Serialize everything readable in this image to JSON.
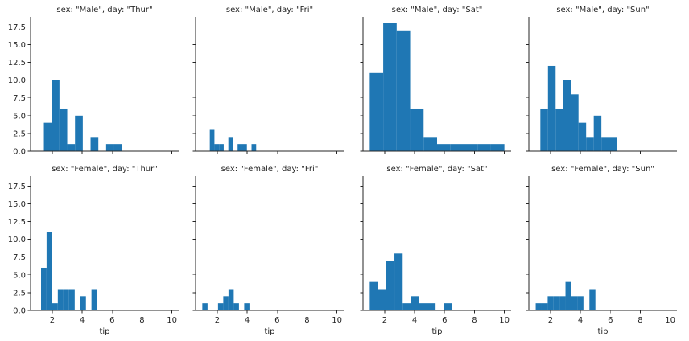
{
  "chart_data": {
    "type": "bar",
    "xlabel": "tip",
    "ylim": [
      0,
      18.9
    ],
    "xlim": [
      0.55,
      10.45
    ],
    "xticks": [
      2,
      4,
      6,
      8,
      10
    ],
    "xtick_labels": [
      "2",
      "4",
      "6",
      "8",
      "10"
    ],
    "yticks": [
      0,
      2.5,
      5,
      7.5,
      10,
      12.5,
      15,
      17.5
    ],
    "ytick_labels": [
      "0.0",
      "2.5",
      "5.0",
      "7.5",
      "10.0",
      "12.5",
      "15.0",
      "17.5"
    ],
    "bar_color": "#1f77b4",
    "panels": [
      {
        "title": "sex: \"Male\", day: \"Thur\"",
        "bins": [
          [
            1.44,
            1.96,
            4
          ],
          [
            1.96,
            2.48,
            10
          ],
          [
            2.48,
            3.0,
            6
          ],
          [
            3.0,
            3.52,
            1
          ],
          [
            3.52,
            4.04,
            5
          ],
          [
            4.04,
            4.56,
            0
          ],
          [
            4.56,
            5.08,
            2
          ],
          [
            5.08,
            5.6,
            0
          ],
          [
            5.6,
            6.12,
            1
          ],
          [
            6.12,
            6.64,
            1
          ]
        ]
      },
      {
        "title": "sex: \"Male\", day: \"Fri\"",
        "bins": [
          [
            1.5,
            1.81,
            3
          ],
          [
            1.81,
            2.12,
            1
          ],
          [
            2.12,
            2.43,
            1
          ],
          [
            2.43,
            2.74,
            0
          ],
          [
            2.74,
            3.05,
            2
          ],
          [
            3.05,
            3.36,
            0
          ],
          [
            3.36,
            3.67,
            1
          ],
          [
            3.67,
            3.98,
            1
          ],
          [
            3.98,
            4.29,
            0
          ],
          [
            4.29,
            4.6,
            1
          ]
        ]
      },
      {
        "title": "sex: \"Male\", day: \"Sat\"",
        "bins": [
          [
            1.0,
            1.9,
            11
          ],
          [
            1.9,
            2.8,
            18
          ],
          [
            2.8,
            3.7,
            17
          ],
          [
            3.7,
            4.6,
            6
          ],
          [
            4.6,
            5.5,
            2
          ],
          [
            5.5,
            6.4,
            1
          ],
          [
            6.4,
            7.3,
            1
          ],
          [
            7.3,
            8.2,
            1
          ],
          [
            8.2,
            9.1,
            1
          ],
          [
            9.1,
            10.0,
            1
          ]
        ]
      },
      {
        "title": "sex: \"Male\", day: \"Sun\"",
        "bins": [
          [
            1.32,
            1.83,
            6
          ],
          [
            1.83,
            2.34,
            12
          ],
          [
            2.34,
            2.85,
            6
          ],
          [
            2.85,
            3.36,
            10
          ],
          [
            3.36,
            3.87,
            8
          ],
          [
            3.87,
            4.38,
            4
          ],
          [
            4.38,
            4.89,
            2
          ],
          [
            4.89,
            5.4,
            5
          ],
          [
            5.4,
            5.91,
            2
          ],
          [
            5.91,
            6.42,
            2
          ]
        ]
      },
      {
        "title": "sex: \"Female\", day: \"Thur\"",
        "bins": [
          [
            1.25,
            1.62,
            6
          ],
          [
            1.62,
            2.0,
            11
          ],
          [
            2.0,
            2.37,
            1
          ],
          [
            2.37,
            2.75,
            3
          ],
          [
            2.75,
            3.12,
            3
          ],
          [
            3.12,
            3.5,
            3
          ],
          [
            3.5,
            3.87,
            0
          ],
          [
            3.87,
            4.25,
            2
          ],
          [
            4.25,
            4.62,
            0
          ],
          [
            4.62,
            5.0,
            3
          ]
        ]
      },
      {
        "title": "sex: \"Female\", day: \"Fri\"",
        "bins": [
          [
            1.0,
            1.35,
            1
          ],
          [
            1.35,
            1.7,
            0
          ],
          [
            1.7,
            2.05,
            0
          ],
          [
            2.05,
            2.4,
            1
          ],
          [
            2.4,
            2.75,
            2
          ],
          [
            2.75,
            3.1,
            3
          ],
          [
            3.1,
            3.45,
            1
          ],
          [
            3.45,
            3.8,
            0
          ],
          [
            3.8,
            4.15,
            1
          ],
          [
            4.15,
            4.5,
            0
          ]
        ]
      },
      {
        "title": "sex: \"Female\", day: \"Sat\"",
        "bins": [
          [
            1.0,
            1.55,
            4
          ],
          [
            1.55,
            2.1,
            3
          ],
          [
            2.1,
            2.65,
            7
          ],
          [
            2.65,
            3.2,
            8
          ],
          [
            3.2,
            3.75,
            1
          ],
          [
            3.75,
            4.3,
            2
          ],
          [
            4.3,
            4.85,
            1
          ],
          [
            4.85,
            5.4,
            1
          ],
          [
            5.4,
            5.95,
            0
          ],
          [
            5.95,
            6.5,
            1
          ]
        ]
      },
      {
        "title": "sex: \"Female\", day: \"Sun\"",
        "bins": [
          [
            1.01,
            1.41,
            1
          ],
          [
            1.41,
            1.81,
            1
          ],
          [
            1.81,
            2.2,
            2
          ],
          [
            2.2,
            2.6,
            2
          ],
          [
            2.6,
            3.0,
            2
          ],
          [
            3.0,
            3.4,
            4
          ],
          [
            3.4,
            3.8,
            2
          ],
          [
            3.8,
            4.2,
            2
          ],
          [
            4.2,
            4.6,
            0
          ],
          [
            4.6,
            5.0,
            3
          ]
        ]
      }
    ]
  }
}
